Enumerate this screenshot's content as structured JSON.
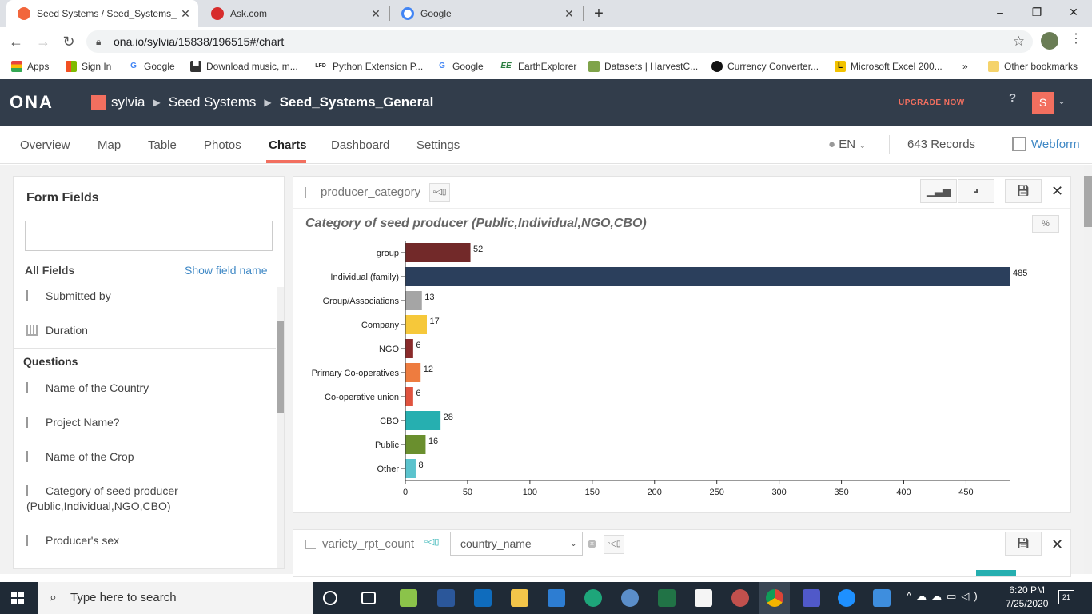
{
  "browser": {
    "tabs": [
      {
        "title": "Seed Systems / Seed_Systems_Ge",
        "close": "✕",
        "active": true,
        "color": "#f2663c"
      },
      {
        "title": "Ask.com",
        "close": "✕",
        "active": false,
        "color": "#d72c2c"
      },
      {
        "title": "Google",
        "close": "✕",
        "active": false,
        "color": "#4285f4"
      }
    ],
    "new_tab": "+",
    "window_controls": [
      "–",
      "❐",
      "✕"
    ],
    "url": "ona.io/sylvia/15838/196515#/chart",
    "bookmarks": [
      {
        "label": "Apps",
        "icon": "apps-grid-icon"
      },
      {
        "label": "Sign In",
        "icon": "microsoft-icon"
      },
      {
        "label": "Google",
        "icon": "google-icon"
      },
      {
        "label": "Download music, m...",
        "icon": "car-icon"
      },
      {
        "label": "Python Extension P...",
        "icon": "lfd-icon"
      },
      {
        "label": "Google",
        "icon": "google-icon"
      },
      {
        "label": "EarthExplorer",
        "icon": "ee-icon"
      },
      {
        "label": "Datasets | HarvestC...",
        "icon": "harvest-icon"
      },
      {
        "label": "Currency Converter...",
        "icon": "currency-icon"
      },
      {
        "label": "Microsoft Excel 200...",
        "icon": "excel-icon"
      }
    ],
    "bookmarks_more": "»",
    "other_bookmarks": "Other bookmarks"
  },
  "app": {
    "logo": "ONA",
    "user_avatar_letter": "S",
    "breadcrumb": [
      "sylvia",
      "Seed Systems",
      "Seed_Systems_General"
    ],
    "upgrade": "UPGRADE NOW",
    "help": "?",
    "accent": "#f26f5f",
    "header_bg": "#323d4b"
  },
  "nav": {
    "tabs": [
      "Overview",
      "Map",
      "Table",
      "Photos",
      "Charts",
      "Dashboard",
      "Settings"
    ],
    "active": "Charts",
    "language": "EN",
    "records": "643 Records",
    "webform": "Webform"
  },
  "form_fields": {
    "title": "Form Fields",
    "search_placeholder": "",
    "all_fields": "All Fields",
    "show_field_name": "Show field name",
    "meta_fields": [
      "Submitted by",
      "Duration"
    ],
    "questions_label": "Questions",
    "questions": [
      "Name of the Country",
      "Project Name?",
      "Name of the Crop",
      "Category of seed producer (Public,Individual,NGO,CBO)",
      "Producer's sex"
    ]
  },
  "chart_card": {
    "field_name": "producer_category",
    "percent_toggle": "%",
    "close": "✕"
  },
  "chart_data": {
    "type": "bar",
    "orientation": "horizontal",
    "title": "Category of seed producer (Public,Individual,NGO,CBO)",
    "categories": [
      "group",
      "Individual (family)",
      "Group/Associations",
      "Company",
      "NGO",
      "Primary Co-operatives",
      "Co-operative union",
      "CBO",
      "Public",
      "Other"
    ],
    "values": [
      52,
      485,
      13,
      17,
      6,
      12,
      6,
      28,
      16,
      8
    ],
    "colors": [
      "#722929",
      "#2b3f5c",
      "#a5a5a5",
      "#f6c83a",
      "#8a2b2b",
      "#ee7c3f",
      "#e0533f",
      "#26afb0",
      "#6a8f2e",
      "#5bc3cd"
    ],
    "xticks": [
      0,
      50,
      100,
      150,
      200,
      250,
      300,
      350,
      400,
      450
    ],
    "xlim": [
      0,
      485
    ],
    "grid": false
  },
  "second_card": {
    "field_name": "variety_rpt_count",
    "group_by_select": "country_name",
    "close": "✕"
  },
  "taskbar": {
    "search_placeholder": "Type here to search",
    "time": "6:20 PM",
    "date": "7/25/2020",
    "notifications": "21"
  }
}
